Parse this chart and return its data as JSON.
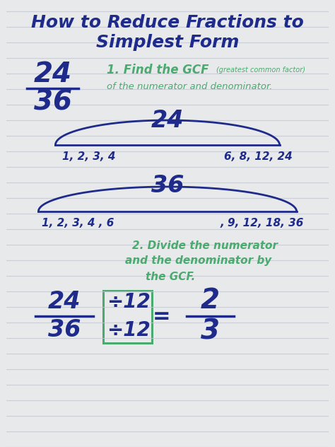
{
  "bg_color": "#e8e9ea",
  "line_color": "#c5c8d0",
  "title_line1": "How to Reduce Fractions to",
  "title_line2": "Simplest Form",
  "title_color": "#1e2b8a",
  "step1_gcf": "1. Find the GCF",
  "step1_gcf_sub": "(greatest common factor)",
  "step1_line2": "of the numerator and denominator.",
  "step1_color": "#4aaa70",
  "fraction_color": "#1e2b8a",
  "step2_line1": "2. Divide the numerator",
  "step2_line2": "and the denominator by",
  "step2_line3": "the GCF.",
  "step2_color": "#4aaa70",
  "box_color": "#4aaa70"
}
